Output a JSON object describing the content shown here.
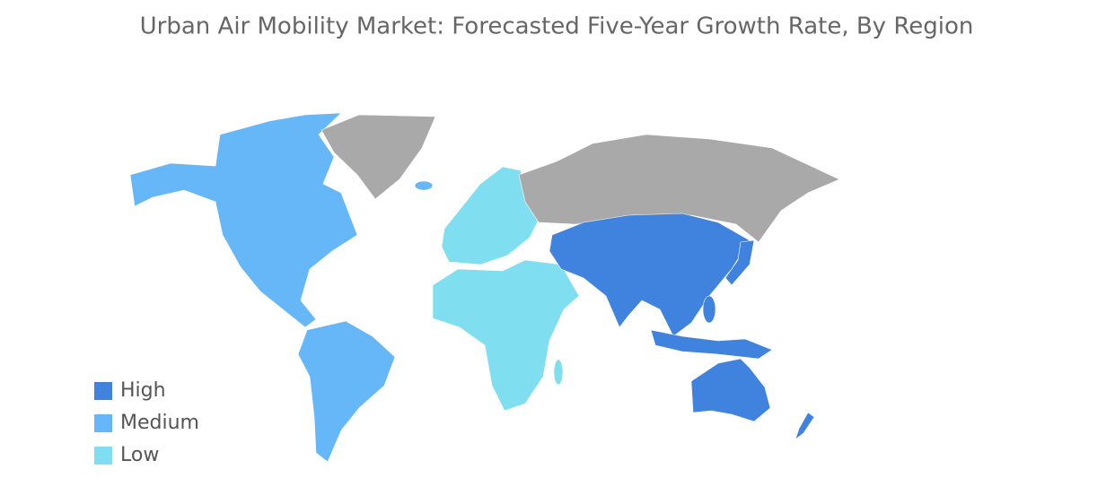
{
  "title": "Urban Air Mobility Market: Forecasted Five-Year Growth Rate, By Region",
  "legend": [
    {
      "label": "High",
      "color": "#3f83de"
    },
    {
      "label": "Medium",
      "color": "#66b7f8"
    },
    {
      "label": "Low",
      "color": "#7fdff0"
    }
  ]
}
